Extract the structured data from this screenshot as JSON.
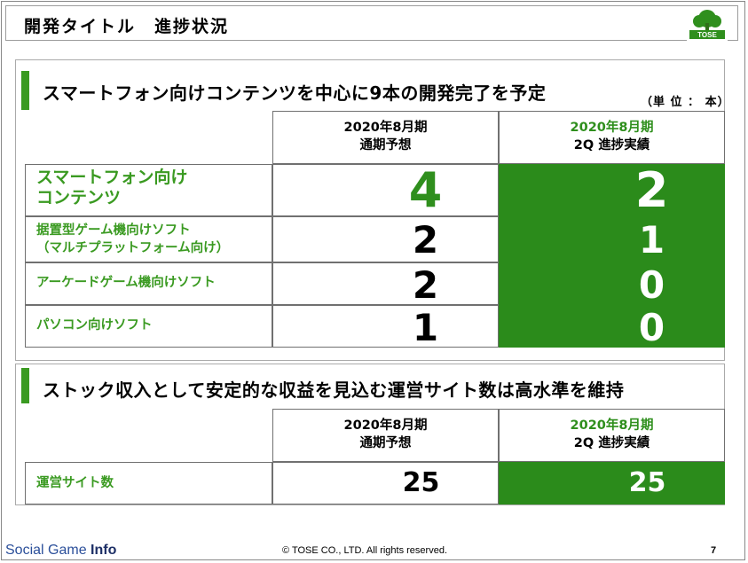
{
  "header": {
    "title": "開発タイトル　進捗状況",
    "logo_text": "TOSE"
  },
  "section1": {
    "title": "スマートフォン向けコンテンツを中心に9本の開発完了を予定",
    "unit": "（単 位 ： 本）",
    "col_plan": {
      "line1": "2020年8月期",
      "line2": "通期予想"
    },
    "col_actual": {
      "line1": "2020年8月期",
      "line2": "2Q 進捗実績"
    },
    "rows": [
      {
        "label_line1": "スマートフォン向け",
        "label_line2": "コンテンツ",
        "plan": "4",
        "actual": "2"
      },
      {
        "label_line1": "据置型ゲーム機向けソフト",
        "label_line2": "（マルチプラットフォーム向け）",
        "plan": "2",
        "actual": "1"
      },
      {
        "label_line1": "アーケードゲーム機向けソフト",
        "label_line2": "",
        "plan": "2",
        "actual": "0"
      },
      {
        "label_line1": "パソコン向けソフト",
        "label_line2": "",
        "plan": "1",
        "actual": "0"
      }
    ]
  },
  "section2": {
    "title": "ストック収入として安定的な収益を見込む運営サイト数は高水準を維持",
    "col_plan": {
      "line1": "2020年8月期",
      "line2": "通期予想"
    },
    "col_actual": {
      "line1": "2020年8月期",
      "line2": "2Q 進捗実績"
    },
    "row": {
      "label": "運営サイト数",
      "plan": "25",
      "actual": "25"
    }
  },
  "footer": {
    "brand_light": "Social Game ",
    "brand_bold": "Info",
    "copyright": "© TOSE CO., LTD. All rights reserved.",
    "page": "7"
  },
  "colors": {
    "accent_green": "#3a9a21",
    "actual_fill": "#2b8b1b"
  }
}
